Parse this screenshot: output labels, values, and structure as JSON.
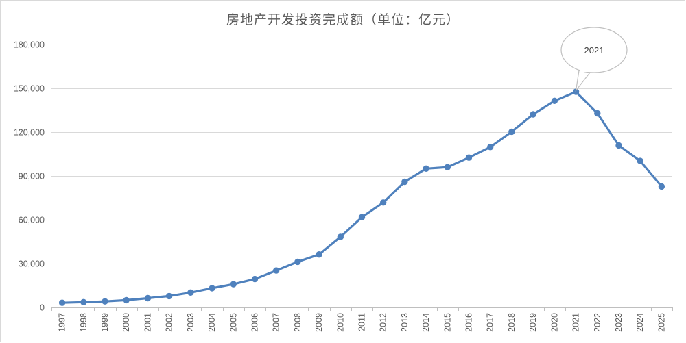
{
  "chart_data": {
    "type": "line",
    "title": "房地产开发投资完成额（单位：亿元）",
    "xlabel": "",
    "ylabel": "",
    "x": [
      "1997",
      "1998",
      "1999",
      "2000",
      "2001",
      "2002",
      "2003",
      "2004",
      "2005",
      "2006",
      "2007",
      "2008",
      "2009",
      "2010",
      "2011",
      "2012",
      "2013",
      "2014",
      "2015",
      "2016",
      "2017",
      "2018",
      "2019",
      "2020",
      "2021",
      "2022",
      "2023",
      "2024",
      "2025"
    ],
    "series": [
      {
        "values": [
          3178,
          3614,
          4103,
          4984,
          6344,
          7791,
          10154,
          13158,
          15909,
          19423,
          25289,
          31203,
          36232,
          48259,
          61796,
          71804,
          86013,
          95036,
          95979,
          102581,
          109799,
          120264,
          132194,
          141443,
          147602,
          132895,
          110913,
          100280,
          82788
        ],
        "color": "#4f81bd"
      }
    ],
    "ylim": [
      0,
      180000
    ],
    "yticks": [
      0,
      30000,
      60000,
      90000,
      120000,
      150000,
      180000
    ],
    "ytick_labels": [
      "0",
      "30,000",
      "60,000",
      "90,000",
      "120,000",
      "150,000",
      "180,000"
    ],
    "grid": true,
    "legend": "none",
    "annotations": [
      {
        "text": "2021",
        "target_x": "2021",
        "style": "callout-ellipse"
      }
    ]
  }
}
